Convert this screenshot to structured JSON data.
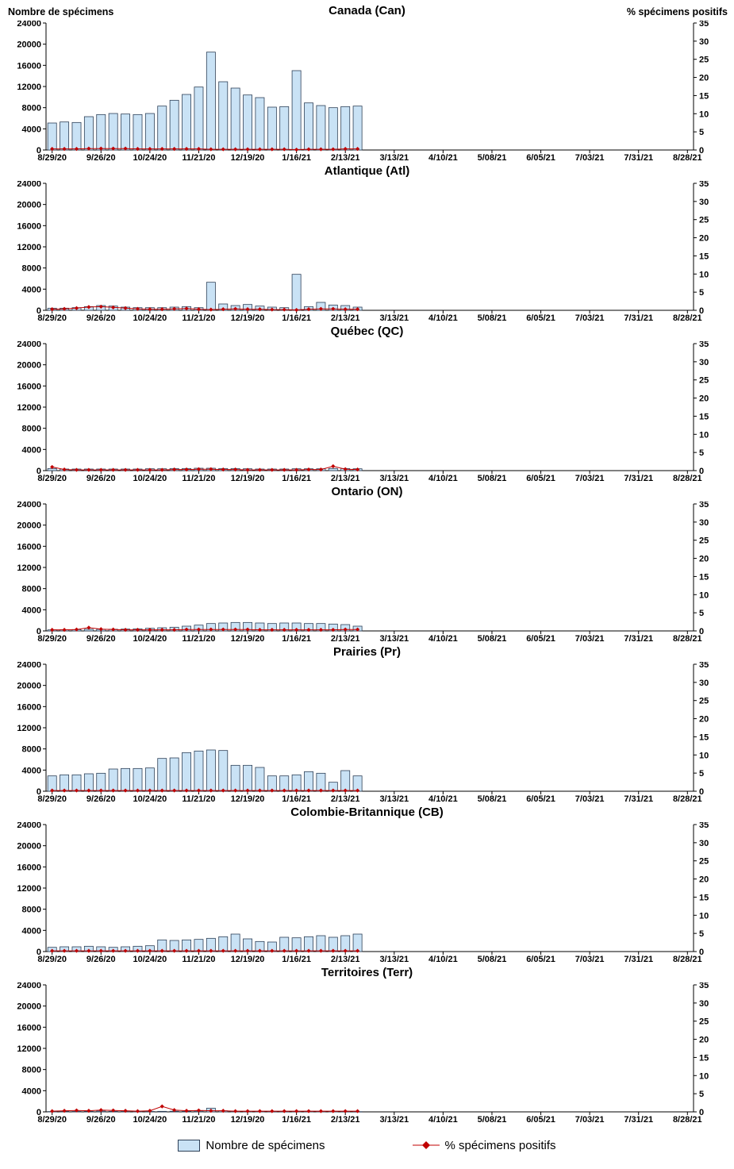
{
  "axis_titles": {
    "left": "Nombre de spécimens",
    "right": "% spécimens positifs"
  },
  "legend": {
    "bars_label": "Nombre de spécimens",
    "line_label": "% spécimens positifs"
  },
  "colors": {
    "bar_fill": "#C9E2F5",
    "bar_stroke": "#2E4057",
    "line_color": "#C00000",
    "marker_color": "#C00000"
  },
  "axes": {
    "left_max": 24000,
    "right_max": 35,
    "left_ticks": [
      0,
      4000,
      8000,
      12000,
      16000,
      20000,
      24000
    ],
    "right_ticks": [
      0,
      5,
      10,
      15,
      20,
      25,
      30,
      35
    ],
    "weeks_total": 53,
    "label_every_weeks": 4,
    "x_labels": [
      "8/29/20",
      "9/26/20",
      "10/24/20",
      "11/21/20",
      "12/19/20",
      "1/16/21",
      "2/13/21",
      "3/13/21",
      "4/10/21",
      "5/08/21",
      "6/05/21",
      "7/03/21",
      "7/31/21",
      "8/28/21"
    ]
  },
  "chart_data": [
    {
      "type": "bar",
      "overlay": "line",
      "title": "Canada (Can)",
      "bars": [
        5100,
        5300,
        5200,
        6300,
        6700,
        6900,
        6800,
        6700,
        6900,
        8300,
        9400,
        10500,
        11900,
        18500,
        12900,
        11700,
        10400,
        9900,
        8100,
        8200,
        15000,
        8900,
        8400,
        8000,
        8200,
        8300
      ],
      "pct_positive": [
        0.3,
        0.3,
        0.3,
        0.4,
        0.4,
        0.4,
        0.4,
        0.3,
        0.3,
        0.3,
        0.3,
        0.3,
        0.3,
        0.2,
        0.2,
        0.2,
        0.2,
        0.2,
        0.2,
        0.2,
        0.1,
        0.2,
        0.2,
        0.2,
        0.3,
        0.3
      ]
    },
    {
      "type": "bar",
      "overlay": "line",
      "title": "Atlantique (Atl)",
      "bars": [
        400,
        400,
        500,
        700,
        900,
        800,
        600,
        500,
        500,
        500,
        600,
        700,
        500,
        5300,
        1200,
        900,
        1100,
        800,
        600,
        500,
        6800,
        700,
        1500,
        1000,
        900,
        600
      ],
      "pct_positive": [
        0.3,
        0.4,
        0.6,
        0.9,
        1.0,
        0.8,
        0.6,
        0.4,
        0.3,
        0.3,
        0.4,
        0.5,
        0.3,
        0.2,
        0.3,
        0.4,
        0.3,
        0.3,
        0.2,
        0.2,
        0.1,
        0.3,
        0.4,
        0.4,
        0.3,
        0.3
      ]
    },
    {
      "type": "bar",
      "overlay": "line",
      "title": "Québec (QC)",
      "bars": [
        400,
        300,
        300,
        300,
        300,
        300,
        300,
        300,
        350,
        350,
        400,
        400,
        450,
        450,
        400,
        400,
        350,
        300,
        300,
        300,
        350,
        350,
        350,
        400,
        400,
        350
      ],
      "pct_positive": [
        1.0,
        0.3,
        0.2,
        0.2,
        0.2,
        0.2,
        0.2,
        0.2,
        0.2,
        0.2,
        0.3,
        0.3,
        0.4,
        0.4,
        0.3,
        0.3,
        0.2,
        0.2,
        0.2,
        0.2,
        0.2,
        0.3,
        0.3,
        1.2,
        0.4,
        0.3
      ]
    },
    {
      "type": "bar",
      "overlay": "line",
      "title": "Ontario (ON)",
      "bars": [
        200,
        220,
        250,
        300,
        300,
        320,
        350,
        400,
        500,
        600,
        700,
        900,
        1100,
        1400,
        1500,
        1600,
        1600,
        1500,
        1400,
        1500,
        1500,
        1400,
        1400,
        1300,
        1200,
        900
      ],
      "pct_positive": [
        0.3,
        0.3,
        0.4,
        0.9,
        0.5,
        0.4,
        0.3,
        0.3,
        0.3,
        0.3,
        0.3,
        0.4,
        0.4,
        0.4,
        0.4,
        0.4,
        0.4,
        0.3,
        0.3,
        0.3,
        0.3,
        0.3,
        0.3,
        0.3,
        0.4,
        0.4
      ]
    },
    {
      "type": "bar",
      "overlay": "line",
      "title": "Prairies (Pr)",
      "bars": [
        2900,
        3100,
        3100,
        3300,
        3400,
        4200,
        4300,
        4300,
        4400,
        6200,
        6300,
        7300,
        7600,
        7800,
        7700,
        4900,
        4900,
        4500,
        2900,
        2900,
        3100,
        3700,
        3400,
        1700,
        3900,
        2900
      ],
      "pct_positive": [
        0.2,
        0.2,
        0.2,
        0.2,
        0.2,
        0.2,
        0.2,
        0.2,
        0.2,
        0.2,
        0.2,
        0.2,
        0.2,
        0.2,
        0.2,
        0.2,
        0.2,
        0.2,
        0.2,
        0.2,
        0.2,
        0.2,
        0.2,
        0.2,
        0.2,
        0.2
      ]
    },
    {
      "type": "bar",
      "overlay": "line",
      "title": "Colombie-Britannique (CB)",
      "bars": [
        800,
        900,
        900,
        1000,
        900,
        800,
        900,
        1000,
        1100,
        2200,
        2100,
        2200,
        2300,
        2500,
        2800,
        3300,
        2400,
        1900,
        1800,
        2700,
        2600,
        2800,
        3000,
        2700,
        3000,
        3300
      ],
      "pct_positive": [
        0.2,
        0.2,
        0.2,
        0.2,
        0.2,
        0.2,
        0.2,
        0.2,
        0.2,
        0.2,
        0.2,
        0.2,
        0.2,
        0.2,
        0.2,
        0.2,
        0.2,
        0.2,
        0.2,
        0.2,
        0.2,
        0.2,
        0.2,
        0.2,
        0.2,
        0.2
      ]
    },
    {
      "type": "bar",
      "overlay": "line",
      "title": "Territoires (Terr)",
      "bars": [
        60,
        100,
        80,
        100,
        150,
        100,
        80,
        60,
        80,
        100,
        120,
        100,
        150,
        700,
        200,
        100,
        80,
        60,
        50,
        50,
        80,
        100,
        80,
        60,
        50,
        40
      ],
      "pct_positive": [
        0.2,
        0.3,
        0.4,
        0.3,
        0.5,
        0.4,
        0.3,
        0.2,
        0.3,
        1.5,
        0.5,
        0.3,
        0.4,
        0.3,
        0.3,
        0.2,
        0.2,
        0.2,
        0.2,
        0.2,
        0.2,
        0.2,
        0.2,
        0.2,
        0.2,
        0.2
      ]
    }
  ]
}
